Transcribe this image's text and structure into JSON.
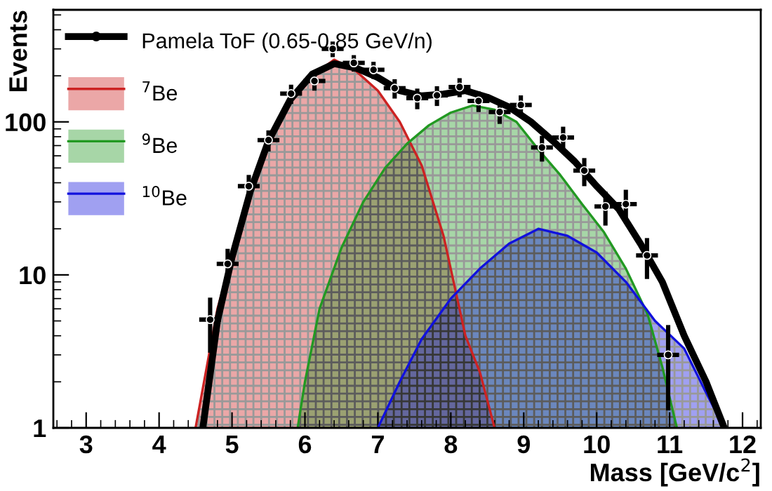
{
  "chart_data": {
    "type": "line",
    "xlabel": "Mass [GeV/c$^{2}$]",
    "ylabel": "Events",
    "xlim": [
      2.55,
      12.25
    ],
    "xticks": [
      3,
      4,
      5,
      6,
      7,
      8,
      9,
      10,
      11,
      12
    ],
    "ylim": [
      1,
      540
    ],
    "yticks": [
      1,
      10,
      100
    ],
    "log": "y",
    "grid": false,
    "legend": "top left",
    "series": [
      {
        "name": "$^{7}$Be",
        "type": "area",
        "color": "#cc2222",
        "x": [
          4.5,
          4.8,
          5.0,
          5.25,
          5.5,
          5.8,
          6.1,
          6.4,
          6.7,
          7.0,
          7.3,
          7.6,
          7.9,
          8.2,
          8.4,
          8.6
        ],
        "values": [
          1,
          6,
          13,
          33,
          70,
          135,
          200,
          255,
          215,
          160,
          100,
          52,
          18,
          4,
          2.3,
          1
        ]
      },
      {
        "name": "$^{9}$Be",
        "type": "area",
        "color": "#229922",
        "x": [
          5.9,
          6.0,
          6.2,
          6.5,
          6.8,
          7.1,
          7.4,
          7.7,
          8.0,
          8.3,
          8.6,
          8.9,
          9.2,
          9.5,
          9.8,
          10.1,
          10.4,
          10.7,
          10.9,
          11.1
        ],
        "values": [
          1,
          2,
          6,
          15,
          30,
          50,
          72,
          95,
          115,
          128,
          120,
          100,
          66,
          45,
          29,
          19,
          11,
          5.5,
          2.5,
          1
        ]
      },
      {
        "name": "$^{10}$Be",
        "type": "area",
        "color": "#1111dd",
        "x": [
          7.0,
          7.3,
          7.6,
          8.0,
          8.4,
          8.8,
          9.2,
          9.6,
          10.0,
          10.4,
          10.8,
          11.2,
          11.5,
          11.75
        ],
        "values": [
          1,
          2,
          3.8,
          7,
          11,
          16,
          20,
          18,
          14,
          9,
          5,
          3.3,
          1.7,
          1
        ]
      },
      {
        "color": "#000000",
        "x": [
          4.6,
          4.8,
          5.0,
          5.25,
          5.5,
          5.8,
          6.1,
          6.4,
          6.7,
          7.0,
          7.3,
          7.6,
          7.9,
          8.2,
          8.5,
          8.8,
          9.1,
          9.4,
          9.7,
          10.0,
          10.3,
          10.6,
          10.9,
          11.2,
          11.5,
          11.75
        ],
        "values": [
          1,
          5,
          13,
          35,
          75,
          140,
          205,
          240,
          225,
          195,
          160,
          148,
          152,
          160,
          145,
          125,
          100,
          75,
          55,
          38,
          27,
          16,
          9,
          4,
          2,
          1
        ]
      },
      {
        "name": "Pamela ToF (0.65-0.85 GeV/n)",
        "type": "scatter",
        "color": "#000000",
        "x": [
          4.7,
          4.94,
          5.23,
          5.5,
          5.81,
          6.13,
          6.38,
          6.67,
          6.94,
          7.23,
          7.54,
          7.81,
          8.12,
          8.38,
          8.67,
          8.96,
          9.25,
          9.54,
          9.83,
          10.12,
          10.4,
          10.69,
          10.98
        ],
        "values": [
          5.1,
          11.8,
          38,
          76,
          153,
          185,
          300,
          243,
          219,
          166,
          143,
          149,
          169,
          137,
          116,
          129,
          68,
          79,
          48,
          28,
          29,
          13.4,
          3
        ],
        "errors": [
          [
            3.1,
            7.1
          ],
          3,
          7,
          12,
          22,
          25,
          35,
          30,
          28,
          24,
          22,
          22,
          24,
          21,
          19,
          20,
          13,
          14,
          10,
          7,
          7,
          4,
          [
            1.3,
            4.7
          ]
        ],
        "xerrors": [
          0.15,
          0.15,
          0.15,
          0.15,
          0.15,
          0.15,
          0.15,
          0.15,
          0.15,
          0.15,
          0.15,
          0.15,
          0.15,
          0.15,
          0.15,
          0.15,
          0.15,
          0.15,
          0.15,
          0.15,
          0.15,
          0.15,
          0.15
        ]
      }
    ]
  }
}
